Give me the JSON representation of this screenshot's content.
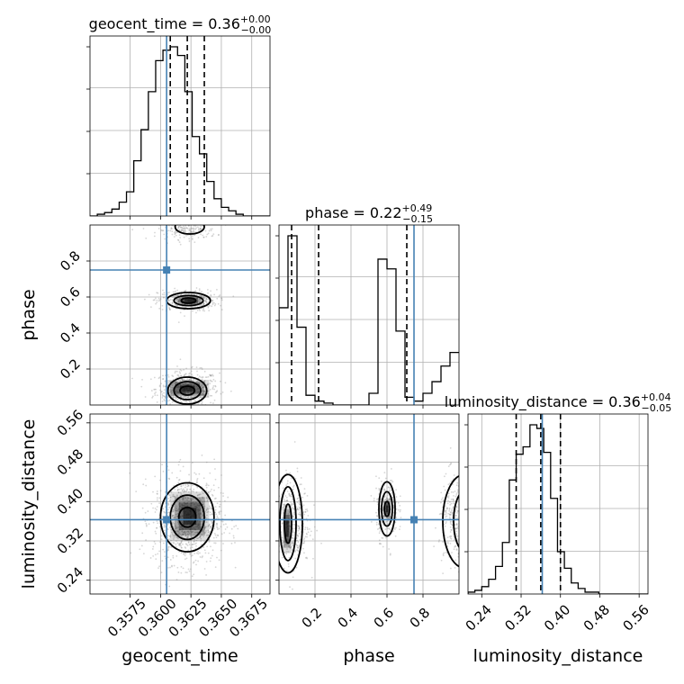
{
  "chart_data": {
    "type": "corner",
    "grid": true,
    "truth_color": "#4682b4",
    "parameters": [
      {
        "key": "geocent_time",
        "label": "geocent_time",
        "title_main": "geocent_time = 0.36",
        "title_plus": "+0.00",
        "title_minus": "−0.00",
        "range": [
          0.3542,
          0.369
        ],
        "ticks": [
          0.3575,
          0.36,
          0.3625,
          0.365,
          0.3675
        ],
        "tick_labels": [
          "0.3575",
          "0.3600",
          "0.3625",
          "0.3650",
          "0.3675"
        ],
        "truth": 0.3605,
        "quantiles": [
          0.3608,
          0.3622,
          0.3636
        ],
        "hist_edges": [
          0.3542,
          0.3548,
          0.3554,
          0.356,
          0.3566,
          0.3572,
          0.3578,
          0.3584,
          0.359,
          0.3596,
          0.3602,
          0.3608,
          0.3614,
          0.362,
          0.3626,
          0.3632,
          0.3638,
          0.3644,
          0.365,
          0.3656,
          0.3662,
          0.3668,
          0.3674,
          0.368,
          0.3686,
          0.369
        ],
        "hist_counts": [
          0,
          0.01,
          0.02,
          0.04,
          0.08,
          0.14,
          0.32,
          0.5,
          0.72,
          0.9,
          0.96,
          0.98,
          0.93,
          0.72,
          0.46,
          0.36,
          0.2,
          0.1,
          0.05,
          0.03,
          0.01,
          0,
          0,
          0,
          0
        ]
      },
      {
        "key": "phase",
        "label": "phase",
        "title_main": "phase = 0.22",
        "title_plus": "+0.49",
        "title_minus": "−0.15",
        "range": [
          0.0,
          1.0
        ],
        "ticks": [
          0.2,
          0.4,
          0.6,
          0.8
        ],
        "tick_labels": [
          "0.2",
          "0.4",
          "0.6",
          "0.8"
        ],
        "truth": 0.75,
        "quantiles": [
          0.07,
          0.22,
          0.71
        ],
        "hist_edges": [
          0.0,
          0.05,
          0.1,
          0.15,
          0.2,
          0.25,
          0.3,
          0.35,
          0.4,
          0.45,
          0.5,
          0.55,
          0.6,
          0.65,
          0.7,
          0.75,
          0.8,
          0.85,
          0.9,
          0.95,
          1.0
        ],
        "hist_counts": [
          0.5,
          0.87,
          0.4,
          0.05,
          0.02,
          0.01,
          0,
          0,
          0,
          0,
          0.06,
          0.75,
          0.7,
          0.38,
          0.04,
          0.02,
          0.06,
          0.12,
          0.2,
          0.27
        ]
      },
      {
        "key": "luminosity_distance",
        "label": "luminosity_distance",
        "title_main": "luminosity_distance = 0.36",
        "title_plus": "+0.04",
        "title_minus": "−0.05",
        "range": [
          0.212,
          0.578
        ],
        "ticks": [
          0.24,
          0.32,
          0.4,
          0.48,
          0.56
        ],
        "tick_labels": [
          "0.24",
          "0.32",
          "0.40",
          "0.48",
          "0.56"
        ],
        "truth": 0.363,
        "quantiles": [
          0.31,
          0.36,
          0.4
        ],
        "hist_edges": [
          0.212,
          0.226,
          0.24,
          0.254,
          0.268,
          0.282,
          0.296,
          0.31,
          0.324,
          0.338,
          0.352,
          0.366,
          0.38,
          0.394,
          0.408,
          0.422,
          0.436,
          0.45,
          0.464,
          0.478,
          0.492,
          0.506,
          0.52,
          0.534,
          0.548,
          0.562,
          0.578
        ],
        "hist_counts": [
          0.01,
          0.02,
          0.04,
          0.08,
          0.15,
          0.28,
          0.62,
          0.76,
          0.8,
          0.92,
          0.9,
          0.77,
          0.52,
          0.23,
          0.14,
          0.06,
          0.03,
          0.01,
          0.01,
          0,
          0,
          0,
          0,
          0,
          0,
          0
        ]
      }
    ],
    "sample_clusters": [
      {
        "x_param": "geocent_time",
        "y_param": "phase",
        "center": [
          0.3622,
          0.09
        ],
        "spread": [
          0.0013,
          0.05
        ],
        "n": 520
      },
      {
        "x_param": "geocent_time",
        "y_param": "phase",
        "center": [
          0.3622,
          0.58
        ],
        "spread": [
          0.0012,
          0.03
        ],
        "n": 380
      },
      {
        "x_param": "geocent_time",
        "y_param": "phase",
        "center": [
          0.3622,
          0.97
        ],
        "spread": [
          0.0012,
          0.025
        ],
        "n": 180
      },
      {
        "x_param": "geocent_time",
        "y_param": "luminosity_distance",
        "center": [
          0.3622,
          0.363
        ],
        "spread": [
          0.0014,
          0.045
        ],
        "n": 1000
      },
      {
        "x_param": "phase",
        "y_param": "luminosity_distance",
        "center": [
          0.07,
          0.36
        ],
        "spread": [
          0.05,
          0.045
        ],
        "n": 420
      },
      {
        "x_param": "phase",
        "y_param": "luminosity_distance",
        "center": [
          0.6,
          0.385
        ],
        "spread": [
          0.03,
          0.03
        ],
        "n": 300
      },
      {
        "x_param": "phase",
        "y_param": "luminosity_distance",
        "center": [
          0.97,
          0.36
        ],
        "spread": [
          0.04,
          0.045
        ],
        "n": 260
      }
    ],
    "contours": [
      {
        "x_param": "geocent_time",
        "y_param": "phase",
        "center": [
          0.3622,
          0.08
        ],
        "radii": [
          [
            0.0006,
            0.025
          ],
          [
            0.0011,
            0.05
          ],
          [
            0.0016,
            0.075
          ]
        ]
      },
      {
        "x_param": "geocent_time",
        "y_param": "phase",
        "center": [
          0.3623,
          0.58
        ],
        "radii": [
          [
            0.0006,
            0.015
          ],
          [
            0.0012,
            0.028
          ],
          [
            0.0018,
            0.045
          ]
        ]
      },
      {
        "x_param": "geocent_time",
        "y_param": "phase",
        "center": [
          0.3624,
          0.99
        ],
        "radii": [
          [
            0.0012,
            0.04
          ]
        ]
      },
      {
        "x_param": "geocent_time",
        "y_param": "luminosity_distance",
        "center": [
          0.3622,
          0.368
        ],
        "radii": [
          [
            0.0007,
            0.02
          ],
          [
            0.0014,
            0.045
          ],
          [
            0.0022,
            0.07
          ]
        ]
      },
      {
        "x_param": "phase",
        "y_param": "luminosity_distance",
        "center": [
          0.05,
          0.355
        ],
        "radii": [
          [
            0.02,
            0.04
          ],
          [
            0.045,
            0.075
          ],
          [
            0.08,
            0.1
          ]
        ]
      },
      {
        "x_param": "phase",
        "y_param": "luminosity_distance",
        "center": [
          0.6,
          0.385
        ],
        "radii": [
          [
            0.015,
            0.015
          ],
          [
            0.03,
            0.035
          ],
          [
            0.045,
            0.055
          ]
        ]
      },
      {
        "x_param": "phase",
        "y_param": "luminosity_distance",
        "center": [
          1.03,
          0.36
        ],
        "radii": [
          [
            0.06,
            0.06
          ],
          [
            0.12,
            0.095
          ]
        ]
      }
    ],
    "density_blocks": [
      {
        "x_param": "geocent_time",
        "y_param": "phase",
        "center": [
          0.3622,
          0.09
        ],
        "size": [
          0.0018,
          0.05
        ]
      },
      {
        "x_param": "geocent_time",
        "y_param": "phase",
        "center": [
          0.3624,
          0.58
        ],
        "size": [
          0.0012,
          0.03
        ]
      },
      {
        "x_param": "geocent_time",
        "y_param": "luminosity_distance",
        "center": [
          0.3624,
          0.37
        ],
        "size": [
          0.0016,
          0.05
        ]
      },
      {
        "x_param": "phase",
        "y_param": "luminosity_distance",
        "center": [
          0.6,
          0.385
        ],
        "size": [
          0.02,
          0.02
        ]
      },
      {
        "x_param": "phase",
        "y_param": "luminosity_distance",
        "center": [
          0.045,
          0.345
        ],
        "size": [
          0.025,
          0.05
        ]
      }
    ]
  }
}
